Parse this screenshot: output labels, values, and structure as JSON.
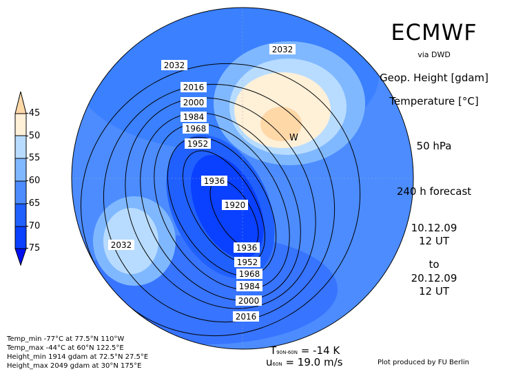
{
  "header": {
    "title": "ECMWF",
    "source": "via DWD"
  },
  "right_panel": {
    "variable1": "Geop. Height [gdam]",
    "variable2": "Temperature [°C]",
    "level": "50 hPa",
    "forecast": "240 h forecast",
    "from_date": "10.12.09",
    "from_time": "12 UT",
    "to_label": "to",
    "to_date": "20.12.09",
    "to_time": "12 UT"
  },
  "colorbar": {
    "labels": [
      "-45",
      "-50",
      "-55",
      "-60",
      "-65",
      "-70",
      "-75"
    ],
    "colors": [
      "#ffd8a8",
      "#fff0d8",
      "#b8dcff",
      "#80b8ff",
      "#4c8cff",
      "#2060ff",
      "#0a40ff",
      "#0010f0"
    ]
  },
  "contour_labels": [
    "2032",
    "2032",
    "2016",
    "2000",
    "1984",
    "1968",
    "1952",
    "1936",
    "1920",
    "1936",
    "1952",
    "1968",
    "1984",
    "2000",
    "2016",
    "2032"
  ],
  "markers": {
    "warm": "W"
  },
  "stats": [
    "Temp_min -77°C at 77.5°N 110°W",
    "Temp_max -44°C at 60°N 122.5°E",
    "Height_min 1914 gdam at 72.5°N 27.5°E",
    "Height_max 2049 gdam at 30°N 175°E"
  ],
  "indices": {
    "t_symbol": "T",
    "t_sub": "90N-60N",
    "t_value": "= -14 K",
    "u_symbol": "u",
    "u_sub": "60N",
    "u_value": "= 19.0 m/s"
  },
  "credit": "Plot produced by FU Berlin"
}
